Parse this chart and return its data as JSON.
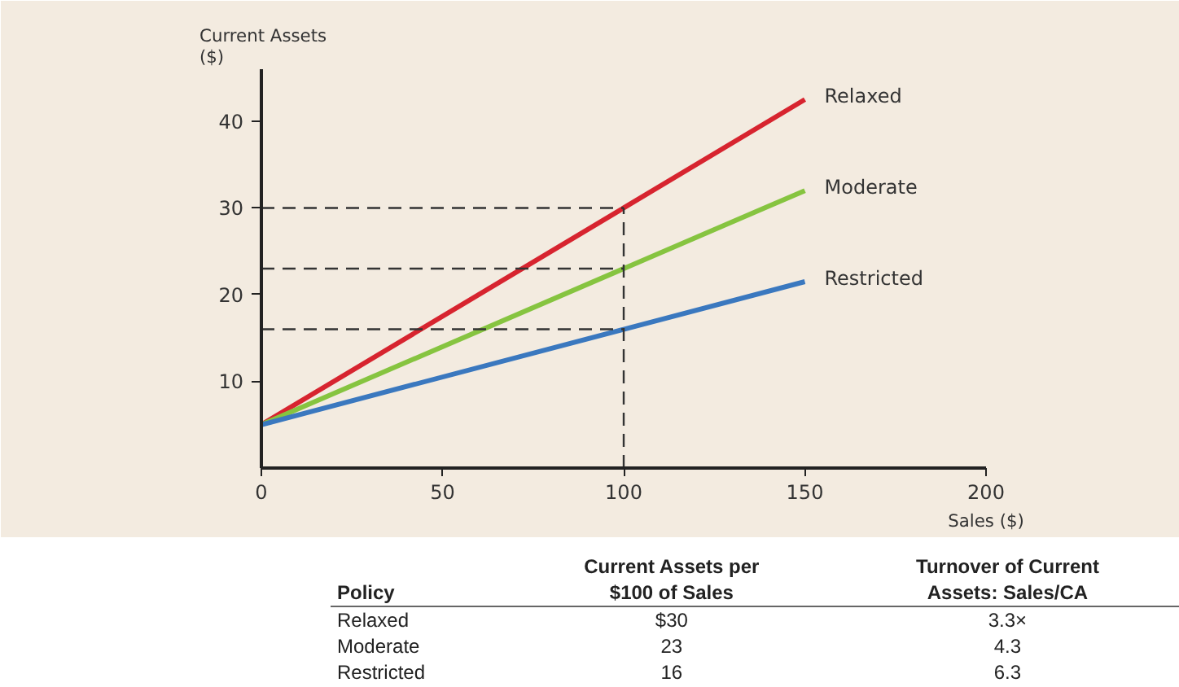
{
  "chart_data": {
    "type": "line",
    "xlabel": "Sales ($)",
    "ylabel": "Current Assets\n($)",
    "xlim": [
      0,
      200
    ],
    "ylim": [
      0,
      46
    ],
    "xticks": [
      0,
      50,
      100,
      150,
      200
    ],
    "yticks": [
      10,
      20,
      30,
      40
    ],
    "grid": false,
    "legend": false,
    "marker": "none",
    "series": [
      {
        "name": "Relaxed",
        "color": "#d7242f",
        "x": [
          0,
          100,
          150
        ],
        "values": [
          5,
          30,
          42.5
        ],
        "line_style": "solid"
      },
      {
        "name": "Moderate",
        "color": "#86c440",
        "x": [
          0,
          100,
          150
        ],
        "values": [
          5,
          23,
          32
        ],
        "line_style": "solid"
      },
      {
        "name": "Restricted",
        "color": "#3a78bf",
        "x": [
          0,
          100,
          150
        ],
        "values": [
          5,
          16,
          21.5
        ],
        "line_style": "solid"
      },
      {
        "color": "#333333",
        "x": [
          0,
          100
        ],
        "values": [
          30,
          30
        ],
        "line_style": "dashed"
      },
      {
        "color": "#333333",
        "x": [
          0,
          100
        ],
        "values": [
          23,
          23
        ],
        "line_style": "dashed"
      },
      {
        "color": "#333333",
        "x": [
          0,
          100
        ],
        "values": [
          16,
          16
        ],
        "line_style": "dashed"
      },
      {
        "color": "#333333",
        "x": [
          100,
          100
        ],
        "values": [
          0,
          30
        ],
        "line_style": "dashed"
      }
    ],
    "annotations": [
      "Policy",
      "Current Assets per\n$100 of Sales",
      "Turnover of Current\nAssets: Sales/CA",
      "Relaxed",
      "$30",
      "3.3×",
      "Moderate",
      "23",
      "4.3",
      "Restricted",
      "16",
      "6.3"
    ]
  }
}
